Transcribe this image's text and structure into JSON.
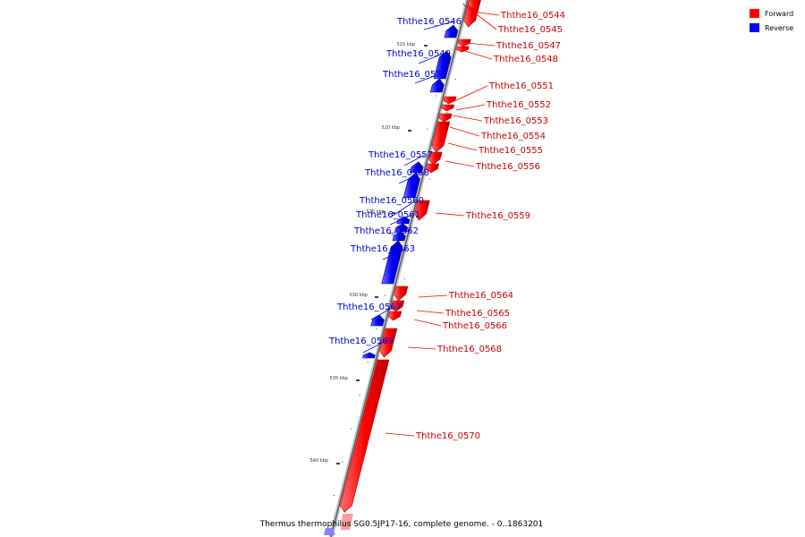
{
  "caption": "Thermus thermophilus SG0.5JP17-16, complete genome. - 0..1863201",
  "legend": [
    {
      "label": "Forward",
      "color": "#ff0000"
    },
    {
      "label": "Reverse",
      "color": "#0000ff"
    }
  ],
  "ticks": [
    "515 kbp",
    "520 kbp",
    "525 kbp",
    "530 kbp",
    "535 kbp",
    "540 kbp"
  ],
  "genes": [
    {
      "name": "Ththe16_0544",
      "strand": "forward"
    },
    {
      "name": "Ththe16_0545",
      "strand": "forward"
    },
    {
      "name": "Ththe16_0546",
      "strand": "reverse"
    },
    {
      "name": "Ththe16_0547",
      "strand": "forward"
    },
    {
      "name": "Ththe16_0548",
      "strand": "forward"
    },
    {
      "name": "Ththe16_0549",
      "strand": "reverse"
    },
    {
      "name": "Ththe16_0550",
      "strand": "reverse"
    },
    {
      "name": "Ththe16_0551",
      "strand": "forward"
    },
    {
      "name": "Ththe16_0552",
      "strand": "forward"
    },
    {
      "name": "Ththe16_0553",
      "strand": "forward"
    },
    {
      "name": "Ththe16_0554",
      "strand": "forward"
    },
    {
      "name": "Ththe16_0555",
      "strand": "forward"
    },
    {
      "name": "Ththe16_0556",
      "strand": "forward"
    },
    {
      "name": "Ththe16_0557",
      "strand": "reverse"
    },
    {
      "name": "Ththe16_0558",
      "strand": "reverse"
    },
    {
      "name": "Ththe16_0559",
      "strand": "forward"
    },
    {
      "name": "Ththe16_0560",
      "strand": "reverse"
    },
    {
      "name": "Ththe16_0561",
      "strand": "reverse"
    },
    {
      "name": "Ththe16_0562",
      "strand": "reverse"
    },
    {
      "name": "Ththe16_0563",
      "strand": "reverse"
    },
    {
      "name": "Ththe16_0564",
      "strand": "forward"
    },
    {
      "name": "Ththe16_0565",
      "strand": "forward"
    },
    {
      "name": "Ththe16_0566",
      "strand": "forward"
    },
    {
      "name": "Ththe16_0567",
      "strand": "reverse"
    },
    {
      "name": "Ththe16_0568",
      "strand": "forward"
    },
    {
      "name": "Ththe16_0569",
      "strand": "reverse"
    },
    {
      "name": "Ththe16_0570",
      "strand": "forward"
    }
  ]
}
